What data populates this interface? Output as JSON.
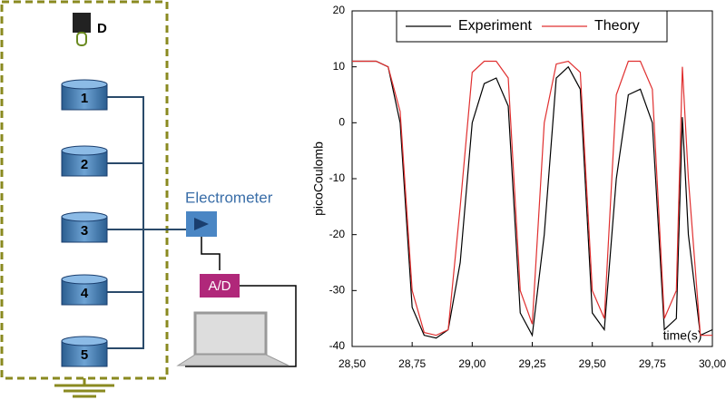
{
  "diagram": {
    "detector": "D",
    "electrodes": [
      "1",
      "2",
      "3",
      "4",
      "5"
    ],
    "electrometer": "Electrometer",
    "converter": "A/D"
  },
  "chart_data": {
    "type": "line",
    "xlabel": "time(s)",
    "ylabel": "picoCoulomb",
    "x": [
      28.5,
      28.6,
      28.65,
      28.7,
      28.75,
      28.8,
      28.85,
      28.9,
      28.95,
      29.0,
      29.05,
      29.1,
      29.15,
      29.2,
      29.25,
      29.3,
      29.35,
      29.4,
      29.45,
      29.5,
      29.55,
      29.6,
      29.65,
      29.7,
      29.75,
      29.8,
      29.85,
      29.875,
      29.9,
      29.95,
      30.0
    ],
    "series": [
      {
        "name": "Experiment",
        "color": "#000000",
        "values": [
          11,
          11,
          10,
          0,
          -33,
          -38,
          -38.5,
          -37,
          -25,
          0,
          7,
          8,
          3,
          -34,
          -38,
          -20,
          8,
          10,
          6,
          -34,
          -37,
          -10,
          5,
          6,
          0,
          -37,
          -35,
          1,
          -20,
          -38,
          -37
        ]
      },
      {
        "name": "Theory",
        "color": "#e03030",
        "values": [
          11,
          11,
          10,
          2,
          -30,
          -37.5,
          -38,
          -37,
          -15,
          9,
          11,
          11,
          8,
          -30,
          -36,
          0,
          10.5,
          11,
          9,
          -30,
          -35,
          5,
          11,
          11,
          6,
          -35,
          -30,
          10,
          -10,
          -38,
          -38
        ]
      }
    ],
    "xlim": [
      28.5,
      30.0
    ],
    "xticks": [
      {
        "value": 28.5,
        "label": "28,50"
      },
      {
        "value": 28.75,
        "label": "28,75"
      },
      {
        "value": 29.0,
        "label": "29,00"
      },
      {
        "value": 29.25,
        "label": "29,25"
      },
      {
        "value": 29.5,
        "label": "29,50"
      },
      {
        "value": 29.75,
        "label": "29,75"
      },
      {
        "value": 30.0,
        "label": "30,00"
      }
    ],
    "ylim": [
      -40,
      20
    ],
    "yticks": [
      -40,
      -30,
      -20,
      -10,
      0,
      10,
      20
    ],
    "legend": "top"
  }
}
